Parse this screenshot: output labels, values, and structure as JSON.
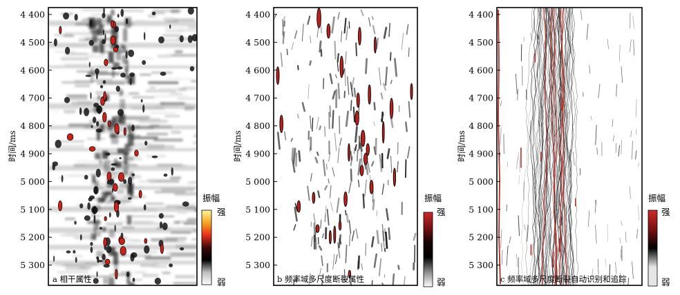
{
  "panels": [
    {
      "caption": "a 相干属性",
      "y_label": "时间/ms",
      "y_ticks": [
        "4 400",
        "4 500",
        "4 600",
        "4 700",
        "4 800",
        "4 900",
        "5 000",
        "5 100",
        "5 200",
        "5 300"
      ],
      "colorbar": {
        "title": "振幅",
        "high": "强",
        "low": "弱",
        "stops": [
          "#fff69a",
          "#f5a623",
          "#e8301c",
          "#3a0b08",
          "#000000",
          "#bdbdbd",
          "#ffffff"
        ]
      }
    },
    {
      "caption": "b 频率域多尺度断裂属性",
      "y_label": "时间/ms",
      "y_ticks": [
        "4 400",
        "4 500",
        "4 600",
        "4 700",
        "4 800",
        "4 900",
        "5 000",
        "5 100",
        "5 200",
        "5 300"
      ],
      "colorbar": {
        "title": "振幅",
        "high": "强",
        "low": "弱",
        "stops": [
          "#cc2a2a",
          "#7a1212",
          "#1a0404",
          "#000000",
          "#8a8a8a",
          "#ffffff"
        ]
      }
    },
    {
      "caption": "c 频率域多尺度断裂自动识别和追踪",
      "y_label": "时间/ms",
      "y_ticks": [
        "4 400",
        "4 500",
        "4 600",
        "4 700",
        "4 800",
        "4 900",
        "5 000",
        "5 100",
        "5 200",
        "5 300"
      ],
      "colorbar": {
        "title": "振幅",
        "high": "强",
        "low": "弱",
        "stops": [
          "#cc2a2a",
          "#7a1212",
          "#000000",
          "#e6e6e6",
          "#e6e6e6"
        ]
      }
    }
  ]
}
